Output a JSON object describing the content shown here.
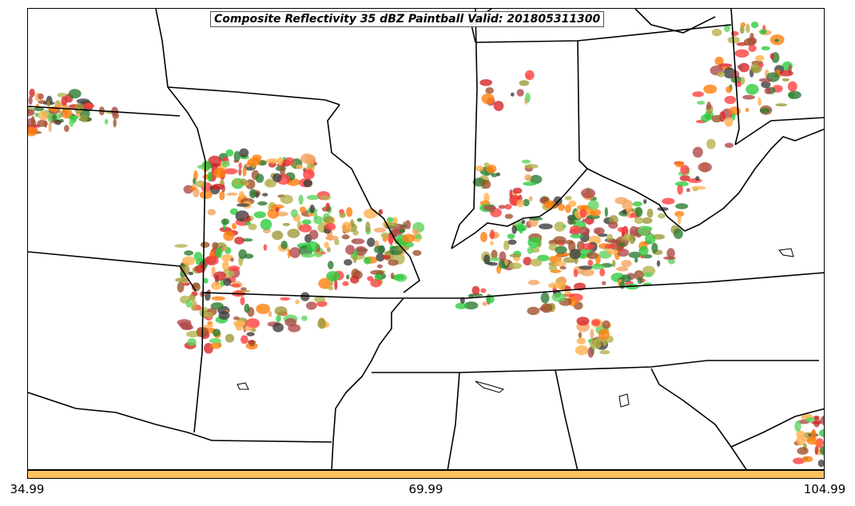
{
  "title": "Composite Reflectivity 35 dBZ Paintball Valid: 201805311300",
  "colorbar": {
    "color": "#ffc15e",
    "ticks": [
      "34.99",
      "69.99",
      "104.99"
    ]
  },
  "member_colors": [
    "#d62728",
    "#ff4040",
    "#ff7f0e",
    "#f4a460",
    "#ffb04f",
    "#2ecc40",
    "#5fd35f",
    "#9e9a3a",
    "#b5b34e",
    "#a0522d",
    "#b04a4a",
    "#2e7d32",
    "#3f3f3f"
  ]
}
